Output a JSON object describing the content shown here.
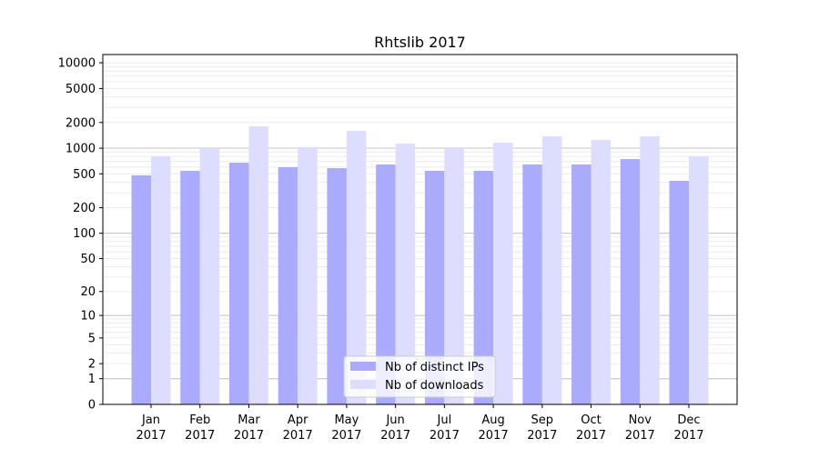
{
  "chart_data": {
    "type": "bar",
    "title": "Rhtslib 2017",
    "xlabel": "",
    "ylabel": "",
    "yscale": "symlog (log10(1+v))",
    "ylim": [
      0,
      12500
    ],
    "yticks": [
      0,
      1,
      2,
      5,
      10,
      20,
      50,
      100,
      200,
      500,
      1000,
      2000,
      5000,
      10000
    ],
    "categories": [
      "Jan\n2017",
      "Feb\n2017",
      "Mar\n2017",
      "Apr\n2017",
      "May\n2017",
      "Jun\n2017",
      "Jul\n2017",
      "Aug\n2017",
      "Sep\n2017",
      "Oct\n2017",
      "Nov\n2017",
      "Dec\n2017"
    ],
    "series": [
      {
        "name": "Nb of distinct IPs",
        "color": "#aaaaff",
        "values": [
          480,
          542,
          676,
          598,
          583,
          644,
          542,
          542,
          644,
          644,
          745,
          414
        ]
      },
      {
        "name": "Nb of downloads",
        "color": "#ddddff",
        "values": [
          802,
          1000,
          1800,
          1030,
          1593,
          1130,
          1000,
          1158,
          1375,
          1247,
          1375,
          802
        ]
      }
    ],
    "grid": true,
    "legend": "bottom-center"
  }
}
